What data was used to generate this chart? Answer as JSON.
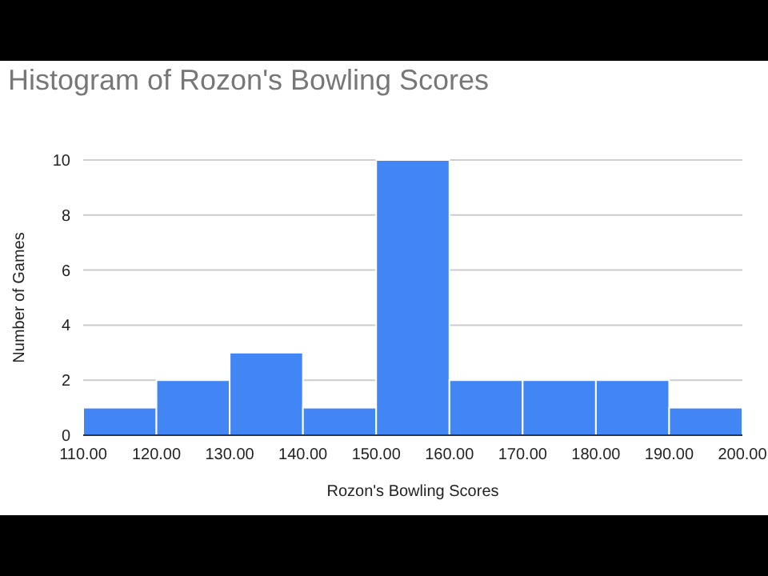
{
  "chart_data": {
    "type": "histogram",
    "title": "Histogram of Rozon's Bowling Scores",
    "xlabel": "Rozon's Bowling Scores",
    "ylabel": "Number of Games",
    "bins": [
      110,
      120,
      130,
      140,
      150,
      160,
      170,
      180,
      190,
      200
    ],
    "values": [
      1,
      2,
      3,
      1,
      10,
      2,
      2,
      2,
      1
    ],
    "color": "#4285f4",
    "xlim": [
      110,
      200
    ],
    "xticks": [
      {
        "value": 110,
        "label": "110.00"
      },
      {
        "value": 120,
        "label": "120.00"
      },
      {
        "value": 130,
        "label": "130.00"
      },
      {
        "value": 140,
        "label": "140.00"
      },
      {
        "value": 150,
        "label": "150.00"
      },
      {
        "value": 160,
        "label": "160.00"
      },
      {
        "value": 170,
        "label": "170.00"
      },
      {
        "value": 180,
        "label": "180.00"
      },
      {
        "value": 190,
        "label": "190.00"
      },
      {
        "value": 200,
        "label": "200.00"
      }
    ],
    "ylim": [
      0,
      10
    ],
    "yticks": [
      0,
      2,
      4,
      6,
      8,
      10
    ],
    "grid": "y"
  }
}
